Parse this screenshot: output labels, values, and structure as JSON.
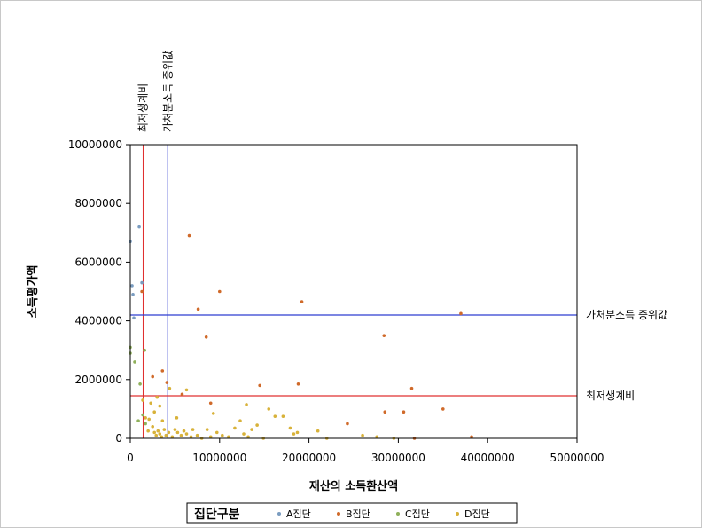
{
  "chart_data": {
    "type": "scatter",
    "xlabel": "재산의 소득환산액",
    "ylabel": "소득평가액",
    "xlim": [
      0,
      50000000
    ],
    "ylim": [
      0,
      10000000
    ],
    "x_ticks": [
      0,
      10000000,
      20000000,
      30000000,
      40000000,
      50000000
    ],
    "y_ticks": [
      0,
      2000000,
      4000000,
      6000000,
      8000000,
      10000000
    ],
    "x_tick_labels": [
      "0",
      "10000000",
      "20000000",
      "30000000",
      "40000000",
      "50000000"
    ],
    "y_tick_labels": [
      "0",
      "2000000",
      "4000000",
      "6000000",
      "8000000",
      "10000000"
    ],
    "reference_lines": [
      {
        "axis": "x",
        "value": 1450000,
        "label": "최저생계비",
        "color": "#e03030"
      },
      {
        "axis": "x",
        "value": 4200000,
        "label": "가처분소득 중위값",
        "color": "#2f3fd0"
      },
      {
        "axis": "y",
        "value": 1450000,
        "label": "최저생계비",
        "color": "#e03030"
      },
      {
        "axis": "y",
        "value": 4200000,
        "label": "가처분소득 중위값",
        "color": "#2f3fd0"
      }
    ],
    "legend": {
      "title": "집단구분",
      "placement": "bottom",
      "entries": [
        {
          "label": "A집단",
          "color": "#7a9cc0"
        },
        {
          "label": "B집단",
          "color": "#d06a2a"
        },
        {
          "label": "C집단",
          "color": "#8fb05a"
        },
        {
          "label": "D집단",
          "color": "#d8b23a"
        }
      ]
    },
    "series": [
      {
        "name": "A집단",
        "color": "#7a9cc0",
        "points": [
          [
            0,
            6700000
          ],
          [
            300000,
            4900000
          ],
          [
            200000,
            5200000
          ],
          [
            400000,
            4100000
          ],
          [
            1000000,
            7200000
          ],
          [
            1300000,
            5300000
          ]
        ]
      },
      {
        "name": "B집단",
        "color": "#d06a2a",
        "points": [
          [
            1300000,
            5000000
          ],
          [
            6600000,
            6900000
          ],
          [
            10000000,
            5000000
          ],
          [
            7600000,
            4400000
          ],
          [
            8500000,
            3450000
          ],
          [
            19200000,
            4650000
          ],
          [
            37000000,
            4250000
          ],
          [
            28400000,
            3500000
          ],
          [
            31500000,
            1700000
          ],
          [
            35000000,
            1000000
          ],
          [
            14500000,
            1800000
          ],
          [
            18800000,
            1850000
          ],
          [
            2500000,
            2100000
          ],
          [
            3600000,
            2300000
          ],
          [
            4100000,
            1900000
          ],
          [
            28500000,
            900000
          ],
          [
            30600000,
            900000
          ],
          [
            24300000,
            500000
          ],
          [
            38200000,
            50000
          ],
          [
            31800000,
            0
          ],
          [
            5800000,
            1500000
          ],
          [
            9000000,
            1200000
          ]
        ]
      },
      {
        "name": "C집단",
        "color": "#8fb05a",
        "points": [
          [
            0,
            3100000
          ],
          [
            0,
            2900000
          ],
          [
            1600000,
            3000000
          ],
          [
            500000,
            2600000
          ],
          [
            1100000,
            1850000
          ],
          [
            1400000,
            800000
          ],
          [
            1700000,
            500000
          ],
          [
            900000,
            600000
          ]
        ]
      },
      {
        "name": "D집단",
        "color": "#d8b23a",
        "points": [
          [
            1400000,
            1300000
          ],
          [
            1700000,
            700000
          ],
          [
            2100000,
            650000
          ],
          [
            2500000,
            400000
          ],
          [
            2700000,
            200000
          ],
          [
            2900000,
            100000
          ],
          [
            3100000,
            250000
          ],
          [
            3300000,
            150000
          ],
          [
            3500000,
            50000
          ],
          [
            3800000,
            300000
          ],
          [
            4000000,
            100000
          ],
          [
            4300000,
            200000
          ],
          [
            4700000,
            50000
          ],
          [
            5000000,
            300000
          ],
          [
            5300000,
            200000
          ],
          [
            5700000,
            100000
          ],
          [
            6000000,
            250000
          ],
          [
            6300000,
            150000
          ],
          [
            6800000,
            50000
          ],
          [
            7000000,
            300000
          ],
          [
            7500000,
            100000
          ],
          [
            8000000,
            0
          ],
          [
            8600000,
            300000
          ],
          [
            9000000,
            50000
          ],
          [
            9700000,
            200000
          ],
          [
            10300000,
            100000
          ],
          [
            11000000,
            50000
          ],
          [
            11700000,
            350000
          ],
          [
            12300000,
            600000
          ],
          [
            12700000,
            150000
          ],
          [
            13200000,
            50000
          ],
          [
            13600000,
            300000
          ],
          [
            14200000,
            450000
          ],
          [
            14900000,
            0
          ],
          [
            15500000,
            1000000
          ],
          [
            16200000,
            750000
          ],
          [
            17100000,
            750000
          ],
          [
            17900000,
            350000
          ],
          [
            18300000,
            150000
          ],
          [
            18700000,
            200000
          ],
          [
            21000000,
            250000
          ],
          [
            22000000,
            0
          ],
          [
            26000000,
            100000
          ],
          [
            27600000,
            50000
          ],
          [
            29500000,
            0
          ],
          [
            3000000,
            1400000
          ],
          [
            3300000,
            1100000
          ],
          [
            6300000,
            1650000
          ],
          [
            13000000,
            1150000
          ],
          [
            9300000,
            850000
          ],
          [
            2700000,
            900000
          ],
          [
            5200000,
            700000
          ],
          [
            3600000,
            600000
          ],
          [
            4400000,
            1700000
          ],
          [
            2300000,
            1200000
          ],
          [
            2000000,
            250000
          ]
        ]
      }
    ]
  }
}
